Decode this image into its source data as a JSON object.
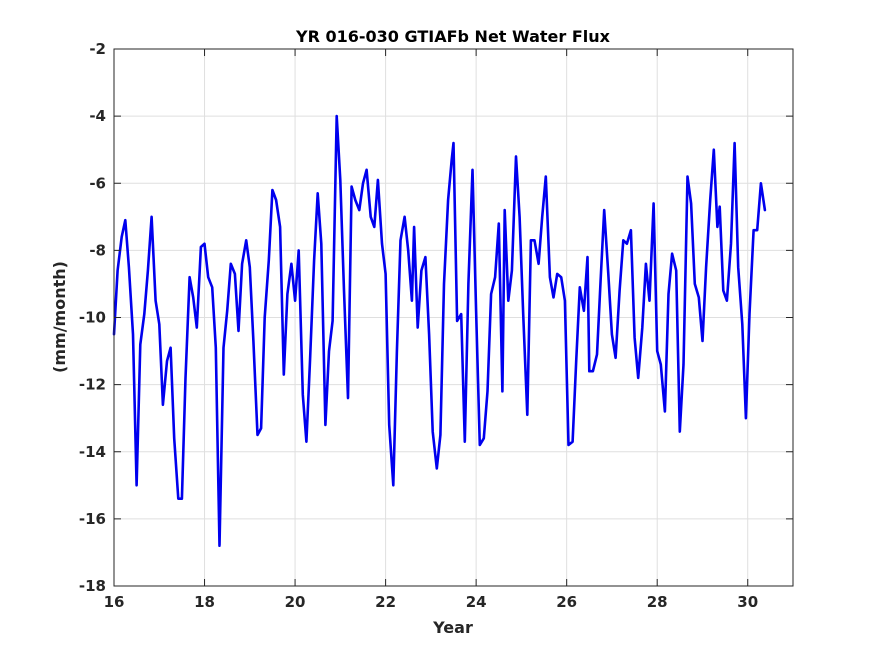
{
  "chart_data": {
    "type": "line",
    "title": "YR 016-030 GTIAFb Net Water Flux",
    "xlabel": "Year",
    "ylabel": "(mm/month)",
    "xlim": [
      16,
      31
    ],
    "ylim": [
      -18,
      -2
    ],
    "xticks": [
      16,
      18,
      20,
      22,
      24,
      26,
      28,
      30
    ],
    "yticks": [
      -18,
      -16,
      -14,
      -12,
      -10,
      -8,
      -6,
      -4,
      -2
    ],
    "grid": true,
    "line_color": "#0000ee",
    "series": [
      {
        "values": [
          [
            16.0,
            -10.5
          ],
          [
            16.08,
            -8.6
          ],
          [
            16.17,
            -7.6
          ],
          [
            16.25,
            -7.1
          ],
          [
            16.33,
            -8.5
          ],
          [
            16.42,
            -10.5
          ],
          [
            16.5,
            -15.0
          ],
          [
            16.58,
            -10.8
          ],
          [
            16.67,
            -9.9
          ],
          [
            16.75,
            -8.6
          ],
          [
            16.83,
            -7.0
          ],
          [
            16.92,
            -9.5
          ],
          [
            17.0,
            -10.2
          ],
          [
            17.08,
            -12.6
          ],
          [
            17.17,
            -11.3
          ],
          [
            17.25,
            -10.9
          ],
          [
            17.33,
            -13.6
          ],
          [
            17.42,
            -15.4
          ],
          [
            17.5,
            -15.4
          ],
          [
            17.58,
            -11.8
          ],
          [
            17.67,
            -8.8
          ],
          [
            17.75,
            -9.4
          ],
          [
            17.83,
            -10.3
          ],
          [
            17.92,
            -7.9
          ],
          [
            18.0,
            -7.8
          ],
          [
            18.08,
            -8.8
          ],
          [
            18.17,
            -9.1
          ],
          [
            18.25,
            -10.9
          ],
          [
            18.33,
            -16.8
          ],
          [
            18.42,
            -10.9
          ],
          [
            18.5,
            -9.8
          ],
          [
            18.58,
            -8.4
          ],
          [
            18.67,
            -8.7
          ],
          [
            18.75,
            -10.4
          ],
          [
            18.83,
            -8.4
          ],
          [
            18.92,
            -7.7
          ],
          [
            19.0,
            -8.5
          ],
          [
            19.08,
            -10.7
          ],
          [
            19.17,
            -13.5
          ],
          [
            19.25,
            -13.3
          ],
          [
            19.33,
            -10.0
          ],
          [
            19.42,
            -8.3
          ],
          [
            19.5,
            -6.2
          ],
          [
            19.58,
            -6.5
          ],
          [
            19.67,
            -7.3
          ],
          [
            19.75,
            -11.7
          ],
          [
            19.83,
            -9.3
          ],
          [
            19.92,
            -8.4
          ],
          [
            20.0,
            -9.5
          ],
          [
            20.08,
            -8.0
          ],
          [
            20.17,
            -12.3
          ],
          [
            20.25,
            -13.7
          ],
          [
            20.33,
            -11.3
          ],
          [
            20.42,
            -8.3
          ],
          [
            20.5,
            -6.3
          ],
          [
            20.58,
            -7.8
          ],
          [
            20.67,
            -13.2
          ],
          [
            20.75,
            -11.0
          ],
          [
            20.83,
            -10.1
          ],
          [
            20.92,
            -4.0
          ],
          [
            21.0,
            -5.9
          ],
          [
            21.08,
            -9.2
          ],
          [
            21.17,
            -12.4
          ],
          [
            21.25,
            -6.1
          ],
          [
            21.33,
            -6.5
          ],
          [
            21.42,
            -6.8
          ],
          [
            21.5,
            -6.0
          ],
          [
            21.58,
            -5.6
          ],
          [
            21.67,
            -7.0
          ],
          [
            21.75,
            -7.3
          ],
          [
            21.83,
            -5.9
          ],
          [
            21.92,
            -7.8
          ],
          [
            22.0,
            -8.7
          ],
          [
            22.08,
            -13.2
          ],
          [
            22.17,
            -15.0
          ],
          [
            22.25,
            -11.0
          ],
          [
            22.33,
            -7.7
          ],
          [
            22.42,
            -7.0
          ],
          [
            22.5,
            -8.0
          ],
          [
            22.58,
            -9.5
          ],
          [
            22.63,
            -7.3
          ],
          [
            22.71,
            -10.3
          ],
          [
            22.79,
            -8.6
          ],
          [
            22.88,
            -8.2
          ],
          [
            22.96,
            -10.5
          ],
          [
            23.04,
            -13.4
          ],
          [
            23.13,
            -14.5
          ],
          [
            23.21,
            -13.5
          ],
          [
            23.29,
            -9.0
          ],
          [
            23.38,
            -6.5
          ],
          [
            23.46,
            -5.3
          ],
          [
            23.5,
            -4.8
          ],
          [
            23.58,
            -10.1
          ],
          [
            23.67,
            -9.9
          ],
          [
            23.75,
            -13.7
          ],
          [
            23.83,
            -9.0
          ],
          [
            23.92,
            -5.6
          ],
          [
            24.0,
            -9.8
          ],
          [
            24.08,
            -13.8
          ],
          [
            24.17,
            -13.6
          ],
          [
            24.25,
            -12.2
          ],
          [
            24.33,
            -9.3
          ],
          [
            24.42,
            -8.8
          ],
          [
            24.5,
            -7.2
          ],
          [
            24.58,
            -12.2
          ],
          [
            24.63,
            -6.8
          ],
          [
            24.71,
            -9.5
          ],
          [
            24.79,
            -8.6
          ],
          [
            24.88,
            -5.2
          ],
          [
            24.96,
            -7.0
          ],
          [
            25.04,
            -9.9
          ],
          [
            25.13,
            -12.9
          ],
          [
            25.21,
            -7.7
          ],
          [
            25.29,
            -7.7
          ],
          [
            25.38,
            -8.4
          ],
          [
            25.46,
            -7.0
          ],
          [
            25.54,
            -5.8
          ],
          [
            25.63,
            -8.8
          ],
          [
            25.71,
            -9.4
          ],
          [
            25.79,
            -8.7
          ],
          [
            25.88,
            -8.8
          ],
          [
            25.96,
            -9.5
          ],
          [
            26.04,
            -13.8
          ],
          [
            26.13,
            -13.7
          ],
          [
            26.21,
            -11.3
          ],
          [
            26.29,
            -9.1
          ],
          [
            26.38,
            -9.8
          ],
          [
            26.46,
            -8.2
          ],
          [
            26.5,
            -11.6
          ],
          [
            26.58,
            -11.6
          ],
          [
            26.67,
            -11.1
          ],
          [
            26.75,
            -8.9
          ],
          [
            26.83,
            -6.8
          ],
          [
            26.92,
            -8.7
          ],
          [
            27.0,
            -10.5
          ],
          [
            27.08,
            -11.2
          ],
          [
            27.17,
            -9.2
          ],
          [
            27.25,
            -7.7
          ],
          [
            27.33,
            -7.8
          ],
          [
            27.42,
            -7.4
          ],
          [
            27.5,
            -10.6
          ],
          [
            27.58,
            -11.8
          ],
          [
            27.67,
            -10.3
          ],
          [
            27.75,
            -8.4
          ],
          [
            27.83,
            -9.5
          ],
          [
            27.92,
            -6.6
          ],
          [
            28.0,
            -11.0
          ],
          [
            28.08,
            -11.4
          ],
          [
            28.17,
            -12.8
          ],
          [
            28.25,
            -9.3
          ],
          [
            28.33,
            -8.1
          ],
          [
            28.42,
            -8.6
          ],
          [
            28.5,
            -13.4
          ],
          [
            28.58,
            -11.4
          ],
          [
            28.67,
            -5.8
          ],
          [
            28.75,
            -6.6
          ],
          [
            28.83,
            -9.0
          ],
          [
            28.92,
            -9.4
          ],
          [
            29.0,
            -10.7
          ],
          [
            29.08,
            -8.5
          ],
          [
            29.17,
            -6.5
          ],
          [
            29.25,
            -5.0
          ],
          [
            29.33,
            -7.3
          ],
          [
            29.38,
            -6.7
          ],
          [
            29.46,
            -9.2
          ],
          [
            29.54,
            -9.5
          ],
          [
            29.63,
            -7.8
          ],
          [
            29.71,
            -4.8
          ],
          [
            29.79,
            -8.5
          ],
          [
            29.88,
            -10.2
          ],
          [
            29.96,
            -13.0
          ],
          [
            30.04,
            -9.9
          ],
          [
            30.13,
            -7.4
          ],
          [
            30.21,
            -7.4
          ],
          [
            30.29,
            -6.0
          ],
          [
            30.38,
            -6.8
          ]
        ]
      }
    ]
  }
}
